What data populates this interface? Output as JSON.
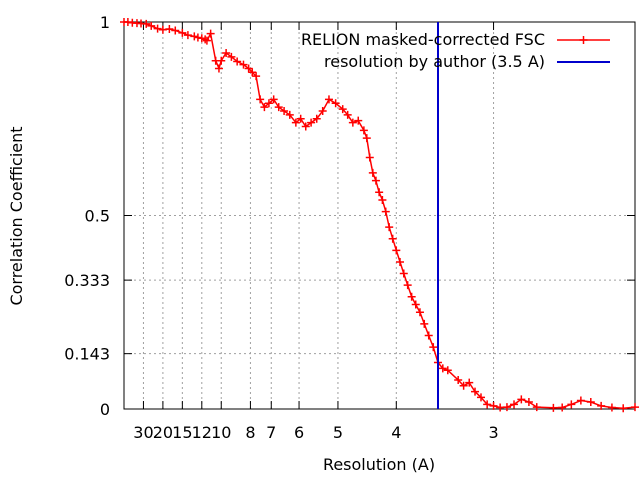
{
  "chart_data": {
    "type": "line",
    "title": "",
    "xlabel": "Resolution (A)",
    "ylabel": "Correlation Coefficient",
    "x_scale": "reciprocal",
    "xlim": [
      60,
      2.2
    ],
    "ylim": [
      0,
      1
    ],
    "grid": true,
    "legend_position": "top-right",
    "x_ticks": [
      {
        "label": "30",
        "value": 30
      },
      {
        "label": "20",
        "value": 20
      },
      {
        "label": "15",
        "value": 15
      },
      {
        "label": "12",
        "value": 12
      },
      {
        "label": "10",
        "value": 10
      },
      {
        "label": "8",
        "value": 8
      },
      {
        "label": "7",
        "value": 7
      },
      {
        "label": "6",
        "value": 6
      },
      {
        "label": "5",
        "value": 5
      },
      {
        "label": "4",
        "value": 4
      },
      {
        "label": "3",
        "value": 3
      }
    ],
    "y_ticks": [
      {
        "label": "0",
        "value": 0
      },
      {
        "label": "0.143",
        "value": 0.143
      },
      {
        "label": "0.333",
        "value": 0.333
      },
      {
        "label": "0.5",
        "value": 0.5
      },
      {
        "label": "1",
        "value": 1
      }
    ],
    "series": [
      {
        "name": "RELION masked-corrected FSC",
        "color": "#ff0000",
        "marker": "plus",
        "x": [
          60,
          50,
          42,
          36,
          32,
          28,
          25,
          22,
          20,
          18,
          16.5,
          15,
          14,
          13,
          12.5,
          12,
          11.6,
          11.4,
          11,
          10.5,
          10.2,
          10,
          9.6,
          9.2,
          8.8,
          8.4,
          8.1,
          7.9,
          7.7,
          7.5,
          7.3,
          7.1,
          6.9,
          6.7,
          6.5,
          6.3,
          6.1,
          5.95,
          5.8,
          5.65,
          5.5,
          5.35,
          5.2,
          5.05,
          4.9,
          4.8,
          4.7,
          4.6,
          4.5,
          4.45,
          4.4,
          4.35,
          4.3,
          4.25,
          4.2,
          4.15,
          4.1,
          4.05,
          4.0,
          3.95,
          3.9,
          3.85,
          3.8,
          3.75,
          3.7,
          3.65,
          3.6,
          3.55,
          3.5,
          3.45,
          3.4,
          3.3,
          3.25,
          3.2,
          3.15,
          3.1,
          3.05,
          3.0,
          2.95,
          2.9,
          2.85,
          2.8,
          2.75,
          2.7,
          2.6,
          2.55,
          2.5,
          2.45,
          2.4,
          2.35,
          2.3,
          2.25,
          2.2
        ],
        "y": [
          1.0,
          1.0,
          0.998,
          0.997,
          0.996,
          0.995,
          0.99,
          0.983,
          0.98,
          0.982,
          0.978,
          0.972,
          0.966,
          0.963,
          0.96,
          0.958,
          0.955,
          0.952,
          0.97,
          0.9,
          0.88,
          0.9,
          0.92,
          0.91,
          0.898,
          0.89,
          0.88,
          0.87,
          0.86,
          0.8,
          0.78,
          0.79,
          0.8,
          0.78,
          0.77,
          0.76,
          0.74,
          0.75,
          0.73,
          0.74,
          0.75,
          0.77,
          0.8,
          0.79,
          0.775,
          0.76,
          0.74,
          0.745,
          0.72,
          0.7,
          0.65,
          0.61,
          0.59,
          0.56,
          0.54,
          0.51,
          0.47,
          0.44,
          0.41,
          0.38,
          0.35,
          0.32,
          0.29,
          0.27,
          0.25,
          0.22,
          0.19,
          0.16,
          0.12,
          0.105,
          0.1,
          0.075,
          0.06,
          0.068,
          0.045,
          0.03,
          0.012,
          0.008,
          0.004,
          0.005,
          0.012,
          0.025,
          0.018,
          0.005,
          0.003,
          0.004,
          0.012,
          0.022,
          0.018,
          0.008,
          0.004,
          0.002,
          0.005
        ]
      },
      {
        "name": "resolution by author (3.5 A)",
        "color": "#0000cc",
        "marker": "none",
        "x": [
          3.5,
          3.5
        ],
        "y": [
          0,
          1
        ]
      }
    ]
  }
}
